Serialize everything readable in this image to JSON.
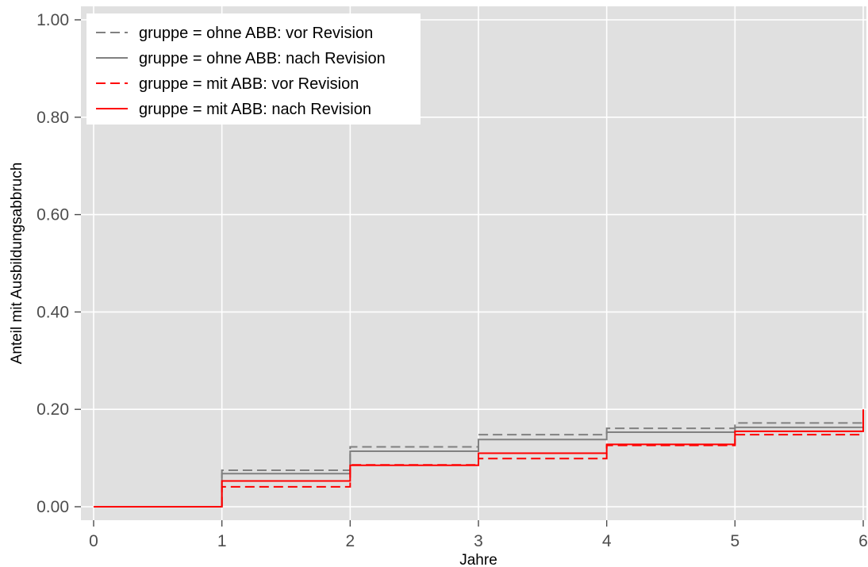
{
  "chart_data": {
    "type": "line",
    "step": true,
    "xlabel": "Jahre",
    "ylabel": "Anteil mit Ausbildungsabbruch",
    "xlim": [
      0,
      6
    ],
    "ylim": [
      0,
      1
    ],
    "x_ticks": [
      0,
      1,
      2,
      3,
      4,
      5,
      6
    ],
    "x_tick_labels": [
      "0",
      "1",
      "2",
      "3",
      "4",
      "5",
      "6"
    ],
    "y_ticks": [
      0,
      0.2,
      0.4,
      0.6,
      0.8,
      1.0
    ],
    "y_tick_labels": [
      "0.00",
      "0.20",
      "0.40",
      "0.60",
      "0.80",
      "1.00"
    ],
    "grid": true,
    "background": "#e0e0e0",
    "legend_position": "top-left",
    "series": [
      {
        "name": "gruppe = ohne ABB: vor Revision",
        "color": "#808080",
        "dash": "dashed",
        "x": [
          0,
          1,
          2,
          3,
          4,
          5,
          6
        ],
        "y": [
          0.0,
          0.075,
          0.123,
          0.148,
          0.161,
          0.172,
          0.172
        ]
      },
      {
        "name": "gruppe = ohne ABB: nach Revision",
        "color": "#808080",
        "dash": "solid",
        "x": [
          0,
          1,
          2,
          3,
          4,
          5,
          6
        ],
        "y": [
          0.0,
          0.068,
          0.114,
          0.138,
          0.153,
          0.163,
          0.163
        ]
      },
      {
        "name": "gruppe = mit ABB: vor Revision",
        "color": "#ff0000",
        "dash": "dashed",
        "x": [
          0,
          1,
          2,
          3,
          4,
          5,
          6
        ],
        "y": [
          0.0,
          0.041,
          0.086,
          0.099,
          0.126,
          0.148,
          0.148
        ]
      },
      {
        "name": "gruppe = mit ABB: nach Revision",
        "color": "#ff0000",
        "dash": "solid",
        "x": [
          0,
          1,
          2,
          3,
          4,
          5,
          6
        ],
        "y": [
          0.0,
          0.053,
          0.085,
          0.11,
          0.128,
          0.155,
          0.2
        ]
      }
    ]
  }
}
